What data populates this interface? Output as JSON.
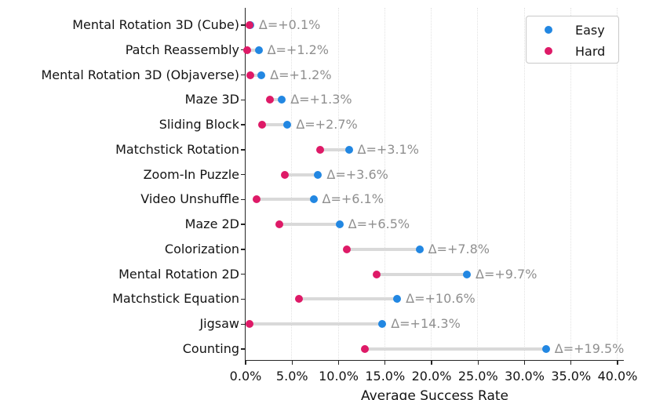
{
  "chart_data": {
    "type": "scatter",
    "variant": "dumbbell",
    "title": "",
    "xlabel": "Average Success Rate",
    "ylabel": "",
    "xlim": [
      0,
      40.7
    ],
    "grid": "vertical dotted gridlines at each x tick",
    "legend_position": "upper right",
    "categories": [
      "Mental Rotation 3D (Cube)",
      "Patch Reassembly",
      "Mental Rotation 3D (Objaverse)",
      "Maze 3D",
      "Sliding Block",
      "Matchstick Rotation",
      "Zoom-In Puzzle",
      "Video Unshuffle",
      "Maze 2D",
      "Colorization",
      "Mental Rotation 2D",
      "Matchstick Equation",
      "Jigsaw",
      "Counting"
    ],
    "series": [
      {
        "name": "Easy",
        "color": "#2287e2",
        "values": [
          0.5,
          1.4,
          1.7,
          3.9,
          4.5,
          11.1,
          7.8,
          7.3,
          10.1,
          18.7,
          23.8,
          16.3,
          14.7,
          32.3
        ]
      },
      {
        "name": "Hard",
        "color": "#de1a67",
        "values": [
          0.4,
          0.2,
          0.5,
          2.6,
          1.8,
          8.0,
          4.2,
          1.2,
          3.6,
          10.9,
          14.1,
          5.7,
          0.4,
          12.8
        ]
      }
    ],
    "delta_labels": [
      "Δ=+0.1%",
      "Δ=+1.2%",
      "Δ=+1.2%",
      "Δ=+1.3%",
      "Δ=+2.7%",
      "Δ=+3.1%",
      "Δ=+3.6%",
      "Δ=+6.1%",
      "Δ=+6.5%",
      "Δ=+7.8%",
      "Δ=+9.7%",
      "Δ=+10.6%",
      "Δ=+14.3%",
      "Δ=+19.5%"
    ],
    "x_tick_values": [
      0,
      5,
      10,
      15,
      20,
      25,
      30,
      35,
      40
    ],
    "x_tick_labels": [
      "0.0%",
      "5.0%",
      "10.0%",
      "15.0%",
      "20.0%",
      "25.0%",
      "30.0%",
      "35.0%",
      "40.0%"
    ],
    "styles": {
      "connector_color": "#d9d9d9",
      "delta_label_color": "#8f8f8f",
      "axis_color": "#262626",
      "grid_color": "#e2e2e2",
      "background": "#ffffff"
    }
  }
}
